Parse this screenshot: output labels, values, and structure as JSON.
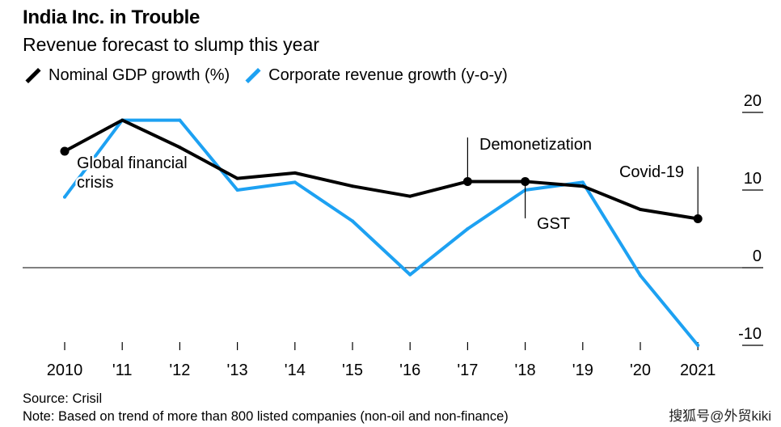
{
  "title": "India Inc. in Trouble",
  "subtitle": "Revenue forecast to slump this year",
  "legend": [
    {
      "label": "Nominal GDP growth (%)",
      "color": "#000000"
    },
    {
      "label": "Corporate revenue growth (y-o-y)",
      "color": "#1da1f2"
    }
  ],
  "chart_data": {
    "type": "line",
    "title": "India Inc. in Trouble",
    "subtitle": "Revenue forecast to slump this year",
    "categories": [
      "2010",
      "'11",
      "'12",
      "'13",
      "'14",
      "'15",
      "'16",
      "'17",
      "'18",
      "'19",
      "'20",
      "2021"
    ],
    "ylim": [
      -10,
      20
    ],
    "yticks": [
      20,
      10,
      0,
      -10
    ],
    "series": [
      {
        "name": "Nominal GDP growth (%)",
        "color": "#000000",
        "values": [
          15,
          19,
          15.5,
          11.5,
          12.2,
          10.5,
          9.2,
          11.1,
          11.1,
          10.5,
          7.5,
          6.3
        ]
      },
      {
        "name": "Corporate revenue growth (y-o-y)",
        "color": "#1da1f2",
        "values": [
          9.1,
          19,
          19,
          10,
          11,
          6,
          -0.9,
          5,
          10,
          11,
          -1,
          -10
        ]
      }
    ],
    "annotations": [
      {
        "label_lines": [
          "Global financial",
          "crisis"
        ]
      },
      {
        "label": "Demonetization"
      },
      {
        "label": "GST"
      },
      {
        "label": "Covid-19"
      }
    ]
  },
  "source": "Source: Crisil",
  "note": "Note: Based on trend of more than 800 listed companies (non-oil and non-finance)",
  "watermark": "搜狐号@外贸kiki"
}
